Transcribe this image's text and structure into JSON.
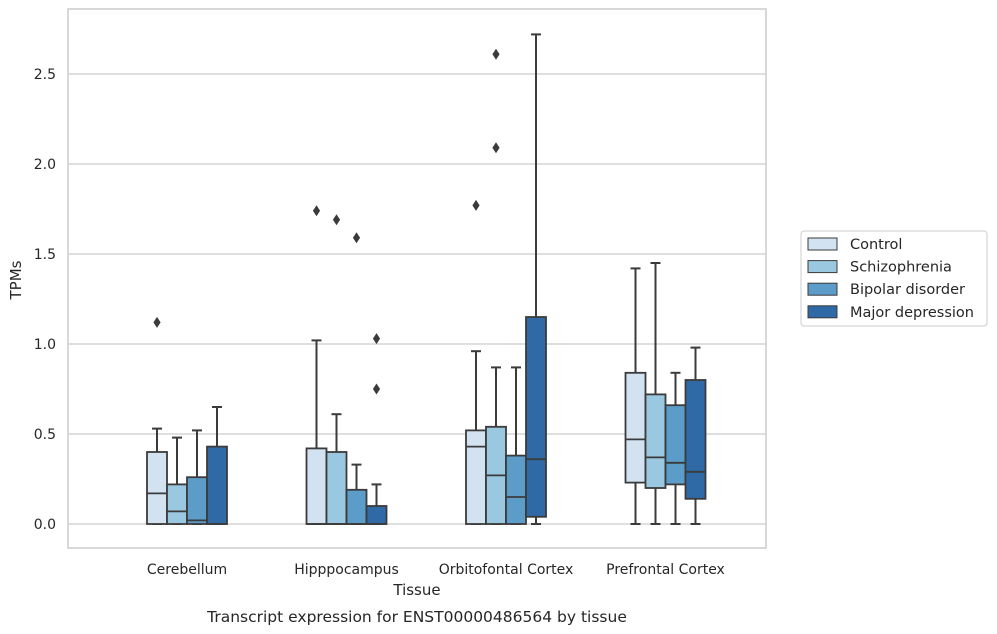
{
  "caption": "Transcript expression for ENST00000486564 by tissue",
  "chart_data": {
    "type": "box",
    "xlabel": "Tissue",
    "ylabel": "TPMs",
    "ylim": [
      -0.13,
      2.85
    ],
    "yticks": [
      "0.0",
      "0.5",
      "1.0",
      "1.5",
      "2.0",
      "2.5"
    ],
    "grid": "horizontal",
    "legend_position": "right",
    "categories": [
      "Cerebellum",
      "Hipppocampus",
      "Orbitofontal Cortex",
      "Prefrontal Cortex"
    ],
    "series": [
      {
        "name": "Control",
        "color": "#d2e2f1",
        "boxes": [
          {
            "whislo": 0.0,
            "q1": 0.0,
            "med": 0.17,
            "q3": 0.4,
            "whishi": 0.53,
            "fliers": [
              1.12
            ]
          },
          {
            "whislo": 0.0,
            "q1": 0.0,
            "med": 0.0,
            "q3": 0.42,
            "whishi": 1.02,
            "fliers": [
              1.74
            ]
          },
          {
            "whislo": 0.0,
            "q1": 0.0,
            "med": 0.43,
            "q3": 0.52,
            "whishi": 0.96,
            "fliers": [
              1.77
            ]
          },
          {
            "whislo": 0.0,
            "q1": 0.23,
            "med": 0.47,
            "q3": 0.84,
            "whishi": 1.42,
            "fliers": []
          }
        ]
      },
      {
        "name": "Schizophrenia",
        "color": "#9ac8e0",
        "boxes": [
          {
            "whislo": 0.0,
            "q1": 0.0,
            "med": 0.07,
            "q3": 0.22,
            "whishi": 0.48,
            "fliers": []
          },
          {
            "whislo": 0.0,
            "q1": 0.0,
            "med": 0.0,
            "q3": 0.4,
            "whishi": 0.61,
            "fliers": [
              1.69
            ]
          },
          {
            "whislo": 0.0,
            "q1": 0.0,
            "med": 0.27,
            "q3": 0.54,
            "whishi": 0.87,
            "fliers": [
              2.09,
              2.61
            ]
          },
          {
            "whislo": 0.0,
            "q1": 0.2,
            "med": 0.37,
            "q3": 0.72,
            "whishi": 1.45,
            "fliers": []
          }
        ]
      },
      {
        "name": "Bipolar disorder",
        "color": "#5b9cc9",
        "boxes": [
          {
            "whislo": 0.0,
            "q1": 0.0,
            "med": 0.02,
            "q3": 0.26,
            "whishi": 0.52,
            "fliers": []
          },
          {
            "whislo": 0.0,
            "q1": 0.0,
            "med": 0.0,
            "q3": 0.19,
            "whishi": 0.33,
            "fliers": [
              1.59
            ]
          },
          {
            "whislo": 0.0,
            "q1": 0.0,
            "med": 0.15,
            "q3": 0.38,
            "whishi": 0.87,
            "fliers": []
          },
          {
            "whislo": 0.0,
            "q1": 0.22,
            "med": 0.34,
            "q3": 0.66,
            "whishi": 0.84,
            "fliers": []
          }
        ]
      },
      {
        "name": "Major depression",
        "color": "#2f6aa6",
        "boxes": [
          {
            "whislo": 0.0,
            "q1": 0.0,
            "med": 0.0,
            "q3": 0.43,
            "whishi": 0.65,
            "fliers": []
          },
          {
            "whislo": 0.0,
            "q1": 0.0,
            "med": 0.0,
            "q3": 0.1,
            "whishi": 0.22,
            "fliers": [
              0.75,
              1.03
            ]
          },
          {
            "whislo": 0.0,
            "q1": 0.04,
            "med": 0.36,
            "q3": 1.15,
            "whishi": 2.72,
            "fliers": []
          },
          {
            "whislo": 0.0,
            "q1": 0.14,
            "med": 0.29,
            "q3": 0.8,
            "whishi": 0.98,
            "fliers": []
          }
        ]
      }
    ]
  }
}
